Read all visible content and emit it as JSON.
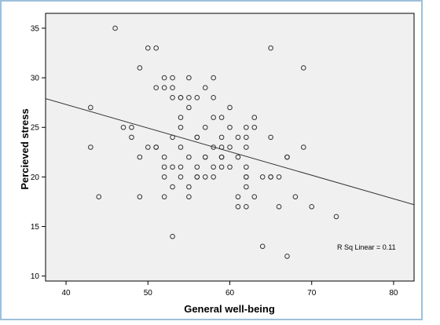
{
  "chart_data": {
    "type": "scatter",
    "xlabel": "General well-being",
    "ylabel": "Percieved stress",
    "xlim": [
      37.5,
      82.5
    ],
    "ylim": [
      9.5,
      36.5
    ],
    "xticks": [
      40,
      50,
      60,
      70,
      80
    ],
    "yticks": [
      10,
      15,
      20,
      25,
      30,
      35
    ],
    "grid": false,
    "legend": "none",
    "colors": {
      "plot_background": "#f0f0f0",
      "frame": "#9ec0da",
      "marker": "#333333",
      "line": "#333333"
    },
    "fit_line": {
      "label": "R Sq Linear = 0.11",
      "x": [
        37.5,
        82.5
      ],
      "y": [
        27.9,
        17.2
      ]
    },
    "points": [
      {
        "x": 46,
        "y": 35
      },
      {
        "x": 50,
        "y": 33
      },
      {
        "x": 51,
        "y": 33
      },
      {
        "x": 65,
        "y": 33
      },
      {
        "x": 49,
        "y": 31
      },
      {
        "x": 69,
        "y": 31
      },
      {
        "x": 52,
        "y": 30
      },
      {
        "x": 53,
        "y": 30
      },
      {
        "x": 55,
        "y": 30
      },
      {
        "x": 58,
        "y": 30
      },
      {
        "x": 51,
        "y": 29
      },
      {
        "x": 52,
        "y": 29
      },
      {
        "x": 53,
        "y": 29
      },
      {
        "x": 57,
        "y": 29
      },
      {
        "x": 53,
        "y": 28
      },
      {
        "x": 54,
        "y": 28
      },
      {
        "x": 54,
        "y": 28
      },
      {
        "x": 55,
        "y": 28
      },
      {
        "x": 56,
        "y": 28
      },
      {
        "x": 58,
        "y": 28
      },
      {
        "x": 43,
        "y": 27
      },
      {
        "x": 55,
        "y": 27
      },
      {
        "x": 60,
        "y": 27
      },
      {
        "x": 54,
        "y": 26
      },
      {
        "x": 58,
        "y": 26
      },
      {
        "x": 59,
        "y": 26
      },
      {
        "x": 63,
        "y": 26
      },
      {
        "x": 47,
        "y": 25
      },
      {
        "x": 48,
        "y": 25
      },
      {
        "x": 54,
        "y": 25
      },
      {
        "x": 57,
        "y": 25
      },
      {
        "x": 60,
        "y": 25
      },
      {
        "x": 62,
        "y": 25
      },
      {
        "x": 63,
        "y": 25
      },
      {
        "x": 48,
        "y": 24
      },
      {
        "x": 53,
        "y": 24
      },
      {
        "x": 56,
        "y": 24
      },
      {
        "x": 56,
        "y": 24
      },
      {
        "x": 59,
        "y": 24
      },
      {
        "x": 61,
        "y": 24
      },
      {
        "x": 62,
        "y": 24
      },
      {
        "x": 65,
        "y": 24
      },
      {
        "x": 43,
        "y": 23
      },
      {
        "x": 50,
        "y": 23
      },
      {
        "x": 51,
        "y": 23
      },
      {
        "x": 51,
        "y": 23
      },
      {
        "x": 54,
        "y": 23
      },
      {
        "x": 58,
        "y": 23
      },
      {
        "x": 59,
        "y": 23
      },
      {
        "x": 60,
        "y": 23
      },
      {
        "x": 62,
        "y": 23
      },
      {
        "x": 69,
        "y": 23
      },
      {
        "x": 49,
        "y": 22
      },
      {
        "x": 52,
        "y": 22
      },
      {
        "x": 55,
        "y": 22
      },
      {
        "x": 57,
        "y": 22
      },
      {
        "x": 57,
        "y": 22
      },
      {
        "x": 59,
        "y": 22
      },
      {
        "x": 59,
        "y": 22
      },
      {
        "x": 61,
        "y": 22
      },
      {
        "x": 67,
        "y": 22
      },
      {
        "x": 67,
        "y": 22
      },
      {
        "x": 52,
        "y": 21
      },
      {
        "x": 53,
        "y": 21
      },
      {
        "x": 54,
        "y": 21
      },
      {
        "x": 56,
        "y": 21
      },
      {
        "x": 58,
        "y": 21
      },
      {
        "x": 59,
        "y": 21
      },
      {
        "x": 60,
        "y": 21
      },
      {
        "x": 62,
        "y": 21
      },
      {
        "x": 52,
        "y": 20
      },
      {
        "x": 54,
        "y": 20
      },
      {
        "x": 56,
        "y": 20
      },
      {
        "x": 56,
        "y": 20
      },
      {
        "x": 57,
        "y": 20
      },
      {
        "x": 58,
        "y": 20
      },
      {
        "x": 62,
        "y": 20
      },
      {
        "x": 62,
        "y": 20
      },
      {
        "x": 64,
        "y": 20
      },
      {
        "x": 65,
        "y": 20
      },
      {
        "x": 65,
        "y": 20
      },
      {
        "x": 66,
        "y": 20
      },
      {
        "x": 53,
        "y": 19
      },
      {
        "x": 55,
        "y": 19
      },
      {
        "x": 62,
        "y": 19
      },
      {
        "x": 44,
        "y": 18
      },
      {
        "x": 49,
        "y": 18
      },
      {
        "x": 52,
        "y": 18
      },
      {
        "x": 55,
        "y": 18
      },
      {
        "x": 61,
        "y": 18
      },
      {
        "x": 63,
        "y": 18
      },
      {
        "x": 68,
        "y": 18
      },
      {
        "x": 61,
        "y": 17
      },
      {
        "x": 62,
        "y": 17
      },
      {
        "x": 66,
        "y": 17
      },
      {
        "x": 70,
        "y": 17
      },
      {
        "x": 73,
        "y": 16
      },
      {
        "x": 53,
        "y": 14
      },
      {
        "x": 64,
        "y": 13
      },
      {
        "x": 67,
        "y": 12
      }
    ]
  }
}
